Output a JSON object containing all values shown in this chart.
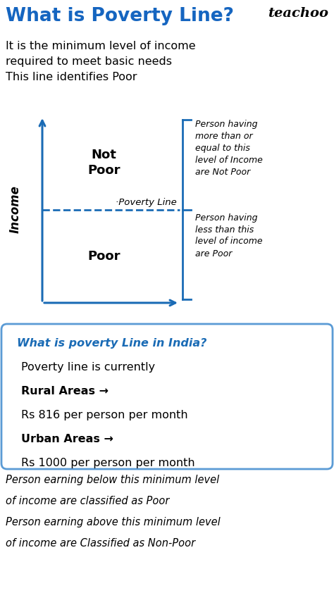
{
  "title": "What is Poverty Line?",
  "title_color": "#1565C0",
  "brand": "teachoo",
  "bg_color": "#FFFFFF",
  "intro_lines": [
    "It is the minimum level of income",
    "required to meet basic needs",
    "This line identifies Poor"
  ],
  "axis_color": "#1A6BB5",
  "not_poor_label": "Not\nPoor",
  "poor_label": "Poor",
  "income_label": "Income",
  "poverty_line_text": "·Poverty Line",
  "not_poor_desc": "Person having\nmore than or\nequal to this\nlevel of Income\nare Not Poor",
  "poor_desc": "Person having\nless than this\nlevel of income\nare Poor",
  "box_title": "What is poverty Line in India?",
  "box_title_color": "#1A6BB5",
  "box_line1": "Poverty line is currently",
  "box_line2": "Rural Areas →",
  "box_line3": "Rs 816 per person per month",
  "box_line4": "Urban Areas →",
  "box_line5": "Rs 1000 per person per month",
  "box_border_color": "#5B9BD5",
  "footer_line1": "Person earning below this minimum level",
  "footer_line2": "of income are classified as Poor",
  "footer_line3": "Person earning above this minimum level",
  "footer_line4": "of income are Classified as Non-Poor"
}
